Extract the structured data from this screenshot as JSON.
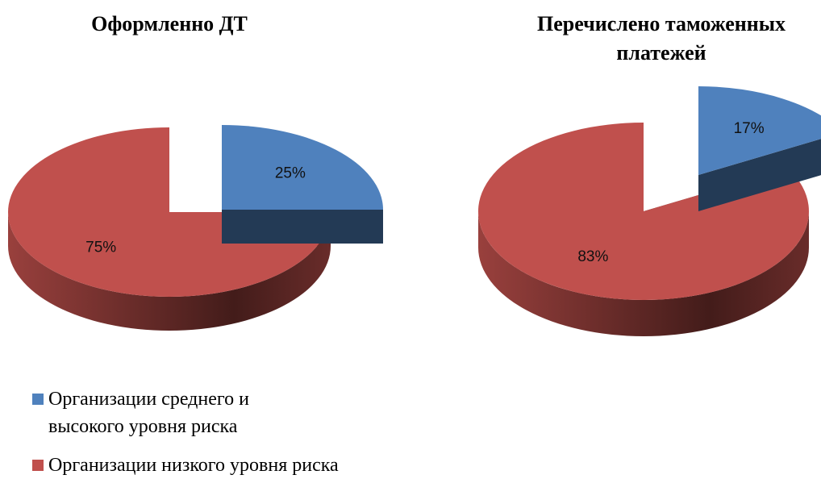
{
  "chart_data": [
    {
      "type": "pie",
      "title": "Оформленно ДТ",
      "categories": [
        "Организации среднего и высокого уровня риска",
        "Организации низкого уровня риска"
      ],
      "values": [
        25,
        75
      ],
      "value_labels": [
        "25%",
        "75%"
      ],
      "colors": [
        "#4f81bd",
        "#c0504d"
      ]
    },
    {
      "type": "pie",
      "title": "Перечислено таможенных платежей",
      "categories": [
        "Организации среднего и высокого уровня риска",
        "Организации низкого уровня риска"
      ],
      "values": [
        17,
        83
      ],
      "value_labels": [
        "17%",
        "83%"
      ],
      "colors": [
        "#4f81bd",
        "#c0504d"
      ]
    }
  ]
}
